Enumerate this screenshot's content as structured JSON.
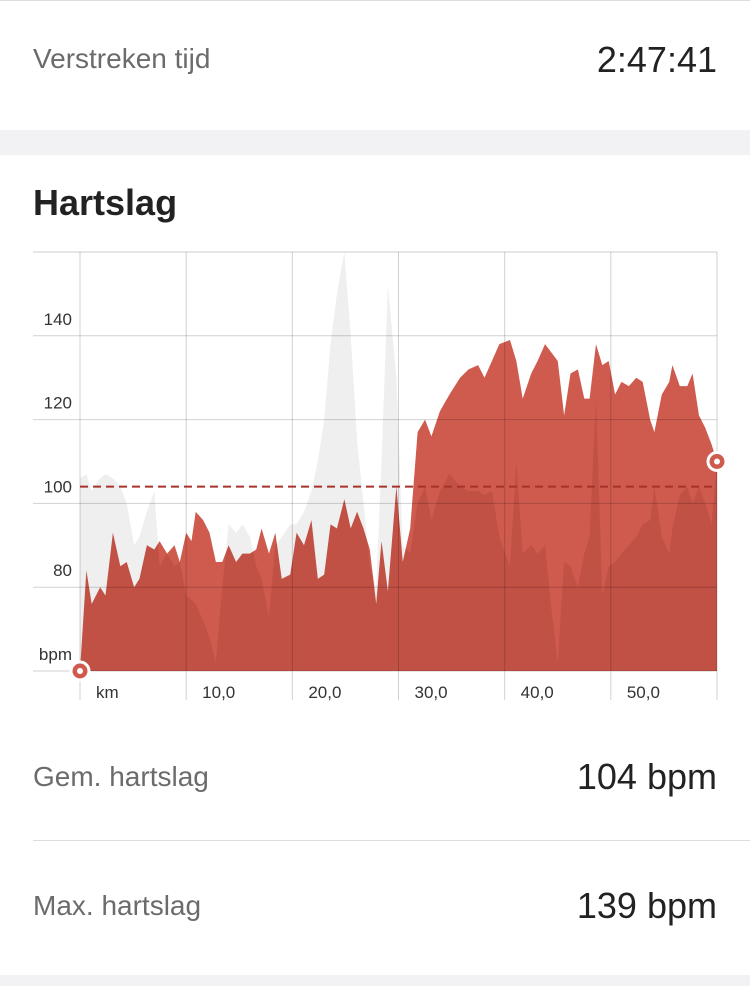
{
  "summary": {
    "label": "Verstreken tijd",
    "value": "2:47:41"
  },
  "section": {
    "title": "Hartslag"
  },
  "chart_data": {
    "type": "area",
    "x": [
      0,
      0.6,
      1.1,
      1.9,
      2.4,
      3.1,
      3.8,
      4.4,
      5.1,
      5.6,
      6.3,
      7.0,
      7.5,
      8.2,
      8.9,
      9.4,
      10.0,
      10.5,
      10.9,
      11.6,
      12.2,
      12.8,
      13.4,
      14.0,
      14.7,
      15.3,
      16.0,
      16.6,
      17.1,
      17.8,
      18.4,
      19.0,
      19.8,
      20.4,
      21.1,
      21.8,
      22.4,
      23.0,
      23.6,
      24.2,
      24.9,
      25.5,
      26.1,
      26.7,
      27.3,
      27.9,
      28.4,
      29.0,
      29.8,
      30.4,
      31.1,
      31.8,
      32.5,
      33.1,
      33.9,
      34.8,
      35.8,
      36.6,
      37.5,
      38.1,
      38.8,
      39.5,
      40.5,
      41.1,
      41.7,
      42.5,
      43.1,
      43.8,
      44.4,
      45.0,
      45.6,
      46.2,
      46.9,
      47.5,
      48.0,
      48.6,
      49.2,
      49.8,
      50.4,
      51.0,
      51.7,
      52.4,
      53.0,
      53.7,
      54.1,
      54.8,
      55.5,
      55.8,
      56.5,
      57.2,
      57.7,
      58.3,
      58.9,
      59.5,
      60.0
    ],
    "series": [
      {
        "color": "#efefef",
        "values": [
          106,
          107,
          103,
          106,
          107,
          106,
          104,
          100,
          90,
          92,
          98,
          103,
          85,
          88,
          85,
          86,
          78,
          77,
          76,
          72,
          68,
          62,
          80,
          95,
          93,
          95,
          92,
          85,
          82,
          73,
          90,
          92,
          95,
          95,
          98,
          103,
          110,
          120,
          138,
          150,
          160,
          140,
          115,
          100,
          85,
          80,
          110,
          152,
          130,
          90,
          88,
          100,
          104,
          96,
          103,
          107,
          104,
          103,
          103,
          102,
          103,
          92,
          85,
          110,
          88,
          90,
          88,
          90,
          75,
          62,
          86,
          85,
          80,
          88,
          92,
          125,
          78,
          85,
          86,
          88,
          90,
          92,
          95,
          96,
          104,
          92,
          88,
          94,
          102,
          104,
          100,
          104,
          100,
          95,
          110
        ]
      },
      {
        "color": "#cf5b4f",
        "values": [
          60,
          84,
          76,
          80,
          78,
          93,
          85,
          86,
          80,
          82,
          90,
          89,
          91,
          88,
          90,
          86,
          93,
          91,
          98,
          96,
          93,
          86,
          86,
          90,
          86,
          88,
          88,
          89,
          94,
          88,
          93,
          82,
          83,
          93,
          90,
          96,
          82,
          83,
          95,
          94,
          101,
          94,
          98,
          94,
          89,
          76,
          91,
          79,
          104,
          86,
          94,
          117,
          120,
          116,
          122,
          126,
          130,
          132,
          133,
          130,
          134,
          138,
          139,
          134,
          125,
          131,
          134,
          138,
          136,
          134,
          121,
          131,
          132,
          125,
          125,
          138,
          133,
          134,
          126,
          129,
          128,
          130,
          129,
          120,
          117,
          126,
          129,
          133,
          128,
          128,
          131,
          121,
          118,
          114,
          110
        ]
      }
    ],
    "xlim": [
      0,
      60
    ],
    "xticks": [
      {
        "value": 0,
        "label": "km"
      },
      {
        "value": 10,
        "label": "10,0"
      },
      {
        "value": 20,
        "label": "20,0"
      },
      {
        "value": 30,
        "label": "30,0"
      },
      {
        "value": 40,
        "label": "40,0"
      },
      {
        "value": 50,
        "label": "50,0"
      },
      {
        "value": 60,
        "label": ""
      }
    ],
    "ylim": [
      60,
      160
    ],
    "yticks": [
      {
        "value": 60,
        "label": "bpm"
      },
      80,
      100,
      120,
      140
    ],
    "reference_line": {
      "value": 104,
      "color": "#a8322a"
    },
    "grid": true
  },
  "stats": [
    {
      "label": "Gem. hartslag",
      "value": "104 bpm"
    },
    {
      "label": "Max. hartslag",
      "value": "139 bpm"
    }
  ]
}
